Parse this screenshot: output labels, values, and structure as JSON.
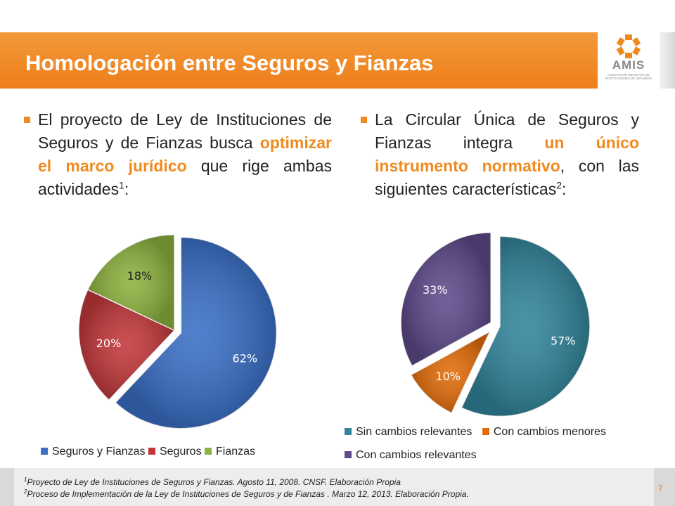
{
  "header": {
    "title": "Homologación entre Seguros y Fianzas"
  },
  "logo": {
    "name": "AMIS",
    "tagline": "ASOCIACIÓN MEXICANA DE INSTITUCIONES DE SEGUROS"
  },
  "left_text": {
    "p1": "El proyecto de Ley de Instituciones de Seguros y de Fianzas busca ",
    "highlight": "optimizar el marco jurídico",
    "p2": " que rige ambas actividades",
    "sup": "1",
    "end": ":"
  },
  "right_text": {
    "p1": "La Circular Única de Seguros y Fianzas integra ",
    "highlight": "un único instrumento normativo",
    "p2": ", con las siguientes características",
    "sup": "2",
    "end": ":"
  },
  "chart_data": [
    {
      "type": "pie",
      "categories": [
        "Seguros y Fianzas",
        "Seguros",
        "Fianzas"
      ],
      "values": [
        62,
        20,
        18
      ],
      "labels": [
        "62%",
        "20%",
        "18%"
      ],
      "colors": [
        "#3a6fc6",
        "#c2373a",
        "#8cb23e"
      ],
      "exploded": true,
      "legend": "bottom"
    },
    {
      "type": "pie",
      "categories": [
        "Sin cambios relevantes",
        "Con cambios menores",
        "Con cambios relevantes"
      ],
      "values": [
        57,
        10,
        33
      ],
      "labels": [
        "57%",
        "10%",
        "33%"
      ],
      "colors": [
        "#31859b",
        "#e36c0a",
        "#5f4a8b"
      ],
      "exploded": true,
      "legend": "bottom"
    }
  ],
  "footer": {
    "note1_sup": "1",
    "note1": "Proyecto de Ley de Instituciones de Seguros y Fianzas. Agosto 11, 2008. CNSF. Elaboración Propia",
    "note2_sup": "2",
    "note2": "Proceso de Implementación de la Ley de Instituciones de Seguros y de Fianzas . Marzo 12, 2013. Elaboración Propia.",
    "page": "7"
  }
}
